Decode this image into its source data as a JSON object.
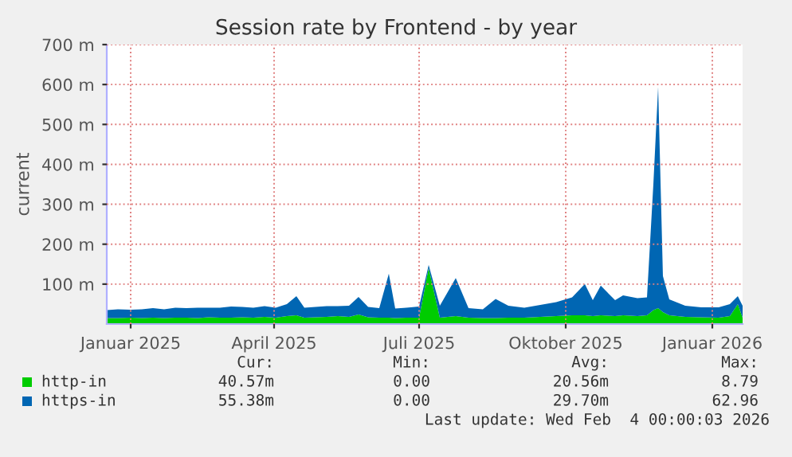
{
  "chart_data": {
    "type": "area",
    "stacked": true,
    "title": "Session rate by Frontend - by year",
    "ylabel": "current",
    "x": [
      "2024-12-17",
      "2024-12-24",
      "2025-01-01",
      "2025-01-08",
      "2025-01-15",
      "2025-01-22",
      "2025-01-29",
      "2025-02-05",
      "2025-02-12",
      "2025-02-19",
      "2025-02-26",
      "2025-03-05",
      "2025-03-12",
      "2025-03-19",
      "2025-03-26",
      "2025-04-02",
      "2025-04-09",
      "2025-04-15",
      "2025-04-20",
      "2025-04-27",
      "2025-05-04",
      "2025-05-11",
      "2025-05-18",
      "2025-05-24",
      "2025-05-30",
      "2025-06-06",
      "2025-06-12",
      "2025-06-16",
      "2025-06-23",
      "2025-07-01",
      "2025-07-07",
      "2025-07-14",
      "2025-07-24",
      "2025-08-01",
      "2025-08-10",
      "2025-08-18",
      "2025-08-26",
      "2025-09-05",
      "2025-09-15",
      "2025-09-25",
      "2025-10-05",
      "2025-10-13",
      "2025-10-18",
      "2025-10-23",
      "2025-11-01",
      "2025-11-06",
      "2025-11-15",
      "2025-11-21",
      "2025-11-25",
      "2025-11-28",
      "2025-12-01",
      "2025-12-05",
      "2025-12-15",
      "2025-12-25",
      "2026-01-05",
      "2026-01-12",
      "2026-01-17",
      "2026-01-20"
    ],
    "series": [
      {
        "name": "http-in",
        "color": "#00cc00",
        "values": [
          15,
          15,
          16,
          15,
          16,
          15,
          16,
          16,
          15,
          17,
          16,
          16,
          17,
          16,
          18,
          16,
          20,
          22,
          16,
          17,
          18,
          20,
          18,
          24,
          17,
          16,
          16,
          15,
          16,
          16,
          140,
          16,
          20,
          16,
          15,
          15,
          16,
          16,
          18,
          20,
          22,
          22,
          20,
          22,
          20,
          22,
          20,
          22,
          35,
          40,
          30,
          22,
          18,
          17,
          16,
          20,
          50,
          16
        ]
      },
      {
        "name": "https-in",
        "color": "#0066b3",
        "values": [
          20,
          22,
          20,
          22,
          24,
          22,
          25,
          24,
          26,
          24,
          25,
          28,
          26,
          25,
          27,
          25,
          30,
          48,
          25,
          26,
          27,
          25,
          28,
          44,
          26,
          24,
          110,
          24,
          25,
          28,
          8,
          30,
          95,
          24,
          22,
          48,
          30,
          25,
          30,
          35,
          45,
          78,
          40,
          74,
          40,
          50,
          45,
          45,
          315,
          554,
          90,
          40,
          28,
          25,
          26,
          30,
          20,
          30
        ]
      }
    ],
    "xlim": [
      "2024-12-17",
      "2026-01-20"
    ],
    "xticks": [
      {
        "value": "2025-01-01",
        "label": "Januar 2025"
      },
      {
        "value": "2025-04-01",
        "label": "April 2025"
      },
      {
        "value": "2025-07-01",
        "label": "Juli 2025"
      },
      {
        "value": "2025-10-01",
        "label": "Oktober 2025"
      },
      {
        "value": "2026-01-01",
        "label": "Januar 2026"
      }
    ],
    "ylim": [
      0,
      700
    ],
    "yticks": [
      {
        "value": 100,
        "label": "100 m"
      },
      {
        "value": 200,
        "label": "200 m"
      },
      {
        "value": 300,
        "label": "300 m"
      },
      {
        "value": 400,
        "label": "400 m"
      },
      {
        "value": 500,
        "label": "500 m"
      },
      {
        "value": 600,
        "label": "600 m"
      },
      {
        "value": 700,
        "label": "700 m"
      }
    ],
    "grid": true,
    "legend": "bottom",
    "annotations": [
      "Cur:",
      "Min:",
      "Avg:",
      "Max:",
      "40.57m",
      "0.00",
      "20.56m",
      "8.79",
      "55.38m",
      "0.00",
      "29.70m",
      "62.96",
      "Last update: Wed Feb  4 00:00:03 2026"
    ]
  }
}
